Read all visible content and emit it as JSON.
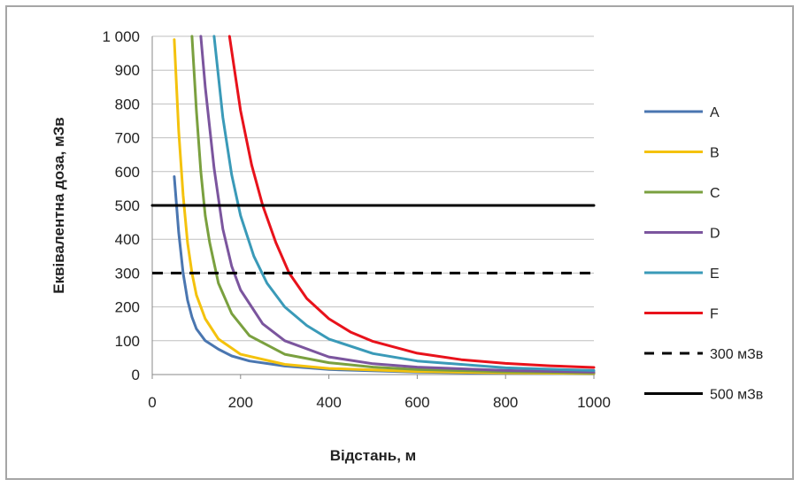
{
  "chart_data": {
    "type": "line",
    "xlabel": "Відстань, м",
    "ylabel": "Еквівалентна доза, мЗв",
    "xlim": [
      0,
      1000
    ],
    "ylim": [
      0,
      1000
    ],
    "xticks": [
      "0",
      "200",
      "400",
      "600",
      "800",
      "1000"
    ],
    "yticks": [
      "0",
      "100",
      "200",
      "300",
      "400",
      "500",
      "600",
      "700",
      "800",
      "900",
      "1 000"
    ],
    "grid": "horizontal",
    "legend": "right",
    "series": [
      {
        "name": "A",
        "color": "#4a76b0",
        "points": [
          [
            50,
            585
          ],
          [
            60,
            420
          ],
          [
            70,
            300
          ],
          [
            80,
            220
          ],
          [
            90,
            170
          ],
          [
            100,
            135
          ],
          [
            120,
            100
          ],
          [
            150,
            75
          ],
          [
            180,
            55
          ],
          [
            220,
            40
          ],
          [
            300,
            25
          ],
          [
            400,
            15
          ],
          [
            600,
            7
          ],
          [
            800,
            4
          ],
          [
            1000,
            2
          ]
        ]
      },
      {
        "name": "B",
        "color": "#f4c20d",
        "points": [
          [
            50,
            990
          ],
          [
            60,
            720
          ],
          [
            70,
            530
          ],
          [
            80,
            390
          ],
          [
            90,
            300
          ],
          [
            100,
            235
          ],
          [
            120,
            165
          ],
          [
            150,
            105
          ],
          [
            200,
            60
          ],
          [
            300,
            30
          ],
          [
            400,
            18
          ],
          [
            600,
            9
          ],
          [
            800,
            5
          ],
          [
            1000,
            3
          ]
        ]
      },
      {
        "name": "C",
        "color": "#7aa03f",
        "points": [
          [
            90,
            1000
          ],
          [
            100,
            780
          ],
          [
            110,
            600
          ],
          [
            120,
            470
          ],
          [
            130,
            390
          ],
          [
            150,
            270
          ],
          [
            180,
            180
          ],
          [
            220,
            115
          ],
          [
            300,
            60
          ],
          [
            400,
            35
          ],
          [
            500,
            22
          ],
          [
            600,
            15
          ],
          [
            800,
            8
          ],
          [
            1000,
            5
          ]
        ]
      },
      {
        "name": "D",
        "color": "#7b559e",
        "points": [
          [
            110,
            1000
          ],
          [
            120,
            850
          ],
          [
            140,
            610
          ],
          [
            160,
            430
          ],
          [
            180,
            320
          ],
          [
            200,
            250
          ],
          [
            250,
            150
          ],
          [
            300,
            100
          ],
          [
            400,
            52
          ],
          [
            500,
            32
          ],
          [
            600,
            22
          ],
          [
            800,
            12
          ],
          [
            1000,
            7
          ]
        ]
      },
      {
        "name": "E",
        "color": "#3a9ab8",
        "points": [
          [
            140,
            1000
          ],
          [
            160,
            760
          ],
          [
            180,
            590
          ],
          [
            200,
            470
          ],
          [
            230,
            350
          ],
          [
            260,
            270
          ],
          [
            300,
            200
          ],
          [
            350,
            145
          ],
          [
            400,
            105
          ],
          [
            500,
            62
          ],
          [
            600,
            40
          ],
          [
            800,
            20
          ],
          [
            1000,
            12
          ]
        ]
      },
      {
        "name": "F",
        "color": "#e8121b",
        "points": [
          [
            175,
            1000
          ],
          [
            200,
            780
          ],
          [
            225,
            620
          ],
          [
            250,
            500
          ],
          [
            280,
            390
          ],
          [
            310,
            300
          ],
          [
            350,
            225
          ],
          [
            400,
            165
          ],
          [
            450,
            125
          ],
          [
            500,
            98
          ],
          [
            600,
            63
          ],
          [
            700,
            44
          ],
          [
            800,
            33
          ],
          [
            900,
            26
          ],
          [
            1000,
            21
          ]
        ]
      },
      {
        "name": "300 мЗв",
        "color": "#000000",
        "dash": true,
        "points": [
          [
            0,
            300
          ],
          [
            1000,
            300
          ]
        ]
      },
      {
        "name": "500 мЗв",
        "color": "#000000",
        "points": [
          [
            0,
            500
          ],
          [
            1000,
            500
          ]
        ]
      }
    ]
  }
}
